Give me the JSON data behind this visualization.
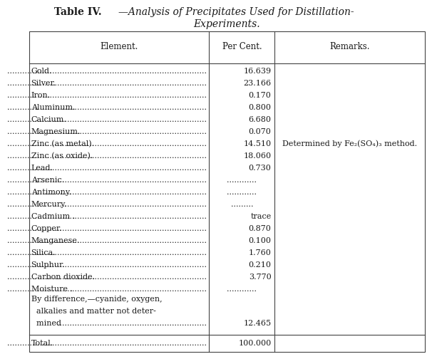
{
  "title_part1": "Table IV.",
  "title_part2": "—Analysis of Precipitates Used for Distillation-",
  "title_line2": "Experiments.",
  "col_headers": [
    "Element.",
    "Per Cent.",
    "Remarks."
  ],
  "rows": [
    {
      "elem": "Gold",
      "val": "16.639",
      "remark": "",
      "dots_val": false
    },
    {
      "elem": "Silver",
      "val": "23.166",
      "remark": "",
      "dots_val": false
    },
    {
      "elem": "Iron",
      "val": "0.170",
      "remark": "",
      "dots_val": false
    },
    {
      "elem": "Aluminum",
      "val": "0.800",
      "remark": "",
      "dots_val": false
    },
    {
      "elem": "Calcium",
      "val": "6.680",
      "remark": "",
      "dots_val": false
    },
    {
      "elem": "Magnesium",
      "val": "0.070",
      "remark": "",
      "dots_val": false
    },
    {
      "elem": "Zinc (as metal)",
      "val": "14.510",
      "remark": "Determined by Fe₂(SO₄)₃ method.",
      "dots_val": false
    },
    {
      "elem": "Zinc (as oxide)",
      "val": "18.060",
      "remark": "",
      "dots_val": false
    },
    {
      "elem": "Lead",
      "val": "0.730",
      "remark": "",
      "dots_val": false
    },
    {
      "elem": "Arsenic",
      "val": "............",
      "remark": "",
      "dots_val": true
    },
    {
      "elem": "Antimony",
      "val": "............",
      "remark": "",
      "dots_val": true
    },
    {
      "elem": "Mercury",
      "val": ".........",
      "remark": "",
      "dots_val": true
    },
    {
      "elem": "Cadmium ",
      "val": "trace",
      "remark": "",
      "dots_val": false
    },
    {
      "elem": "Copper",
      "val": "0.870",
      "remark": "",
      "dots_val": false
    },
    {
      "elem": "Manganese",
      "val": "0.100",
      "remark": "",
      "dots_val": false
    },
    {
      "elem": "Silica",
      "val": "1.760",
      "remark": "",
      "dots_val": false
    },
    {
      "elem": "Sulphur",
      "val": "0.210",
      "remark": "",
      "dots_val": false
    },
    {
      "elem": "Carbon dioxide",
      "val": "3.770",
      "remark": "",
      "dots_val": false
    },
    {
      "elem": "Moisture ",
      "val": "............",
      "remark": "",
      "dots_val": true
    },
    {
      "elem": "By difference,—cyanide, oxygen,",
      "val": "",
      "remark": "",
      "dots_val": false,
      "extra_lines": [
        "  alkalies and matter not deter-",
        "  mined"
      ],
      "extra_val": "12.465"
    }
  ],
  "total_elem": "Total",
  "total_val": "100.000",
  "bg_color": "#ffffff",
  "text_color": "#1a1a1a",
  "line_color": "#444444",
  "font_size": 8.0,
  "header_font_size": 8.5
}
